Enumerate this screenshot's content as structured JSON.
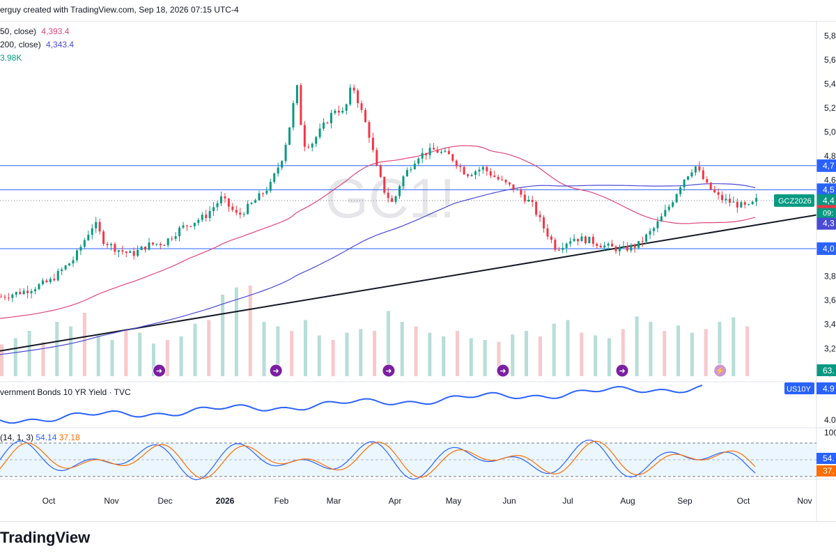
{
  "header": {
    "attribution": "erguy created with TradingView.com, Sep 18, 2026 07:15 UTC-4"
  },
  "legend": {
    "sma50_label": "50, close)",
    "sma50_value": "4,393.4",
    "sma200_label": "200, close)",
    "sma200_value": "4,343.4",
    "volume_value": "3.98K"
  },
  "watermark": "GC1!",
  "symbol_tag": "GCZ2026",
  "countdown_tag": "09:",
  "yield_panel": {
    "title": "vernment Bonds 10 YR Yield · TVC",
    "tag": "US10Y",
    "tag_value": "4.9",
    "axis_label": "4.0"
  },
  "stoch_panel": {
    "title": "(14, 1, 3)",
    "k_value": "54.14",
    "d_value": "37.18",
    "tag_k": "54.",
    "tag_d": "37.",
    "axis_top": "100"
  },
  "volume_tag": "63.",
  "price_tags": {
    "res1": "4,7",
    "res2": "4,5",
    "last": "4,4",
    "sma50": "4,3",
    "sma200": "4,3",
    "support": "4,0"
  },
  "colors": {
    "bull": "#089981",
    "bear": "#f23645",
    "sma50": "#e0457b",
    "sma200": "#4a4ad6",
    "hline": "#2962ff",
    "trend": "#131722",
    "yield": "#2962ff",
    "stoch_k": "#2962ff",
    "stoch_d": "#ff6d00",
    "volume_bull": "#b7ded8",
    "volume_bear": "#f7c9cc"
  },
  "footer": {
    "brand": "TradingView"
  },
  "chart_data": {
    "type": "candlestick",
    "symbol": "GCZ2026",
    "x_ticks": [
      "Oct",
      "Nov",
      "Dec",
      "2026",
      "Feb",
      "Mar",
      "Apr",
      "May",
      "Jun",
      "Jul",
      "Aug",
      "Sep",
      "Oct",
      "Nov"
    ],
    "y_ticks": [
      "5,8",
      "5,6",
      "5,4",
      "5,2",
      "5,0",
      "4,8",
      "4,6",
      "3,8",
      "3,6",
      "3,4",
      "3,2",
      "3,0"
    ],
    "ylim": [
      2970,
      5900
    ],
    "horizontal_levels": [
      4720,
      4520,
      4030
    ],
    "trendline": {
      "start": [
        0,
        3180
      ],
      "end": [
        1,
        4310
      ]
    },
    "sma50_last": 4393.4,
    "sma200_last": 4343.4,
    "events_count": 6,
    "price_path": [
      [
        0.0,
        3630
      ],
      [
        0.03,
        3680
      ],
      [
        0.06,
        3760
      ],
      [
        0.09,
        3950
      ],
      [
        0.11,
        4200
      ],
      [
        0.115,
        4240
      ],
      [
        0.125,
        4100
      ],
      [
        0.14,
        4030
      ],
      [
        0.16,
        3980
      ],
      [
        0.18,
        4060
      ],
      [
        0.2,
        4080
      ],
      [
        0.22,
        4200
      ],
      [
        0.25,
        4300
      ],
      [
        0.27,
        4450
      ],
      [
        0.29,
        4300
      ],
      [
        0.31,
        4420
      ],
      [
        0.33,
        4560
      ],
      [
        0.345,
        4800
      ],
      [
        0.355,
        5100
      ],
      [
        0.362,
        5400
      ],
      [
        0.37,
        4900
      ],
      [
        0.38,
        4900
      ],
      [
        0.39,
        5000
      ],
      [
        0.41,
        5200
      ],
      [
        0.42,
        5150
      ],
      [
        0.43,
        5400
      ],
      [
        0.44,
        5200
      ],
      [
        0.45,
        5000
      ],
      [
        0.46,
        4700
      ],
      [
        0.47,
        4500
      ],
      [
        0.48,
        4400
      ],
      [
        0.49,
        4600
      ],
      [
        0.51,
        4800
      ],
      [
        0.53,
        4850
      ],
      [
        0.55,
        4800
      ],
      [
        0.57,
        4650
      ],
      [
        0.59,
        4700
      ],
      [
        0.61,
        4600
      ],
      [
        0.63,
        4520
      ],
      [
        0.65,
        4400
      ],
      [
        0.665,
        4200
      ],
      [
        0.68,
        4030
      ],
      [
        0.7,
        4120
      ],
      [
        0.72,
        4100
      ],
      [
        0.74,
        4050
      ],
      [
        0.76,
        4020
      ],
      [
        0.78,
        4060
      ],
      [
        0.8,
        4200
      ],
      [
        0.82,
        4400
      ],
      [
        0.835,
        4600
      ],
      [
        0.85,
        4720
      ],
      [
        0.865,
        4550
      ],
      [
        0.88,
        4450
      ],
      [
        0.9,
        4400
      ],
      [
        0.915,
        4370
      ],
      [
        0.925,
        4430
      ]
    ],
    "volume": [
      0.35,
      0.42,
      0.5,
      0.38,
      0.6,
      0.55,
      0.7,
      0.45,
      0.4,
      0.52,
      0.48,
      0.36,
      0.4,
      0.44,
      0.58,
      0.62,
      0.9,
      0.98,
      1.0,
      0.6,
      0.55,
      0.5,
      0.62,
      0.45,
      0.4,
      0.48,
      0.52,
      0.5,
      0.72,
      0.6,
      0.55,
      0.48,
      0.44,
      0.5,
      0.42,
      0.4,
      0.38,
      0.46,
      0.5,
      0.44,
      0.58,
      0.62,
      0.48,
      0.45,
      0.42,
      0.52,
      0.66,
      0.6,
      0.5,
      0.56,
      0.48,
      0.52,
      0.6,
      0.65,
      0.55
    ],
    "yield_last": 4.9,
    "stoch_k_last": 54.14,
    "stoch_d_last": 37.18
  }
}
